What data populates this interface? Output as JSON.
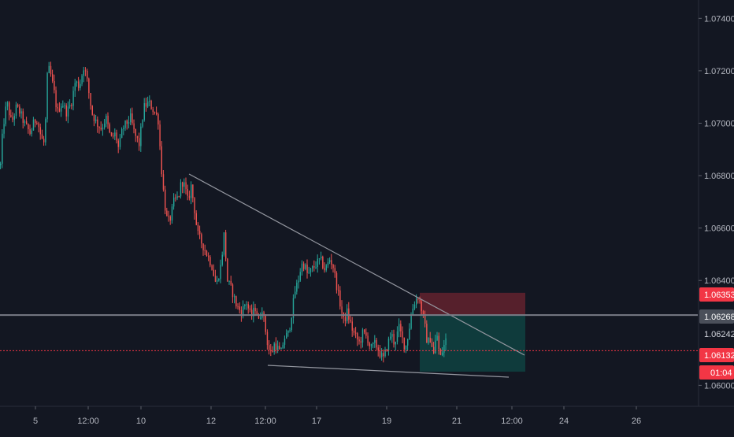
{
  "chart_data": {
    "type": "candlestick",
    "title": "",
    "xlabel": "",
    "ylabel": "",
    "ylim": [
      1.0592,
      1.0747
    ],
    "grid": false,
    "y_ticks": [
      "1.07400",
      "1.07200",
      "1.07000",
      "1.06800",
      "1.06600",
      "1.06400",
      "1.06000"
    ],
    "x_ticks": [
      "5",
      "12:00",
      "10",
      "12",
      "12:00",
      "17",
      "19",
      "21",
      "12:00",
      "24",
      "26"
    ],
    "price_labels": [
      {
        "value": "1.06353",
        "color": "#f23645"
      },
      {
        "value": "1.06268",
        "color": "#4a4f5a"
      },
      {
        "value": "1.06242",
        "color": "#131722"
      },
      {
        "value": "1.06132",
        "color": "#f23645"
      },
      {
        "value": "01:04",
        "color": "#f23645"
      }
    ],
    "levels": {
      "current_price": 1.06132,
      "stop_loss": 1.06353,
      "entry": 1.06268,
      "take_profit_extent": 1.06052
    },
    "waypoints": [
      [
        0,
        1.0684
      ],
      [
        3,
        1.0698
      ],
      [
        8,
        1.0708
      ],
      [
        14,
        1.07
      ],
      [
        20,
        1.0706
      ],
      [
        25,
        1.0704
      ],
      [
        30,
        1.07
      ],
      [
        34,
        1.0698
      ],
      [
        38,
        1.0696
      ],
      [
        42,
        1.07
      ],
      [
        46,
        1.0702
      ],
      [
        52,
        1.0694
      ],
      [
        56,
        1.0692
      ],
      [
        60,
        1.0722
      ],
      [
        64,
        1.0718
      ],
      [
        68,
        1.0712
      ],
      [
        72,
        1.0704
      ],
      [
        78,
        1.0708
      ],
      [
        84,
        1.0704
      ],
      [
        90,
        1.0708
      ],
      [
        95,
        1.0716
      ],
      [
        100,
        1.0714
      ],
      [
        106,
        1.0722
      ],
      [
        110,
        1.0716
      ],
      [
        116,
        1.0704
      ],
      [
        122,
        1.07
      ],
      [
        128,
        1.0698
      ],
      [
        134,
        1.0702
      ],
      [
        140,
        1.0694
      ],
      [
        146,
        1.0696
      ],
      [
        150,
        1.069
      ],
      [
        155,
        1.0698
      ],
      [
        160,
        1.07
      ],
      [
        165,
        1.0702
      ],
      [
        170,
        1.0696
      ],
      [
        176,
        1.0692
      ],
      [
        182,
        1.0706
      ],
      [
        188,
        1.0708
      ],
      [
        196,
        1.0704
      ],
      [
        200,
        1.0702
      ],
      [
        204,
        1.0684
      ],
      [
        208,
        1.067
      ],
      [
        212,
        1.0662
      ],
      [
        216,
        1.0664
      ],
      [
        220,
        1.067
      ],
      [
        226,
        1.0672
      ],
      [
        230,
        1.0678
      ],
      [
        234,
        1.0676
      ],
      [
        238,
        1.067
      ],
      [
        242,
        1.0676
      ],
      [
        246,
        1.0668
      ],
      [
        250,
        1.0658
      ],
      [
        256,
        1.0654
      ],
      [
        262,
        1.065
      ],
      [
        268,
        1.0646
      ],
      [
        274,
        1.0638
      ],
      [
        280,
        1.0646
      ],
      [
        284,
        1.0658
      ],
      [
        288,
        1.064
      ],
      [
        294,
        1.0636
      ],
      [
        300,
        1.063
      ],
      [
        306,
        1.0628
      ],
      [
        312,
        1.0632
      ],
      [
        318,
        1.0626
      ],
      [
        324,
        1.063
      ],
      [
        328,
        1.0624
      ],
      [
        332,
        1.063
      ],
      [
        336,
        1.0622
      ],
      [
        340,
        1.0614
      ],
      [
        344,
        1.0612
      ],
      [
        348,
        1.0616
      ],
      [
        352,
        1.0614
      ],
      [
        356,
        1.0612
      ],
      [
        360,
        1.0618
      ],
      [
        366,
        1.062
      ],
      [
        370,
        1.0628
      ],
      [
        374,
        1.0636
      ],
      [
        378,
        1.064
      ],
      [
        382,
        1.0646
      ],
      [
        386,
        1.0646
      ],
      [
        390,
        1.0642
      ],
      [
        395,
        1.0644
      ],
      [
        400,
        1.0646
      ],
      [
        406,
        1.0648
      ],
      [
        412,
        1.0644
      ],
      [
        418,
        1.0648
      ],
      [
        422,
        1.0646
      ],
      [
        428,
        1.0636
      ],
      [
        432,
        1.063
      ],
      [
        436,
        1.0624
      ],
      [
        440,
        1.0628
      ],
      [
        444,
        1.0624
      ],
      [
        448,
        1.062
      ],
      [
        452,
        1.0618
      ],
      [
        456,
        1.0616
      ],
      [
        460,
        1.062
      ],
      [
        466,
        1.0618
      ],
      [
        470,
        1.0614
      ],
      [
        476,
        1.0616
      ],
      [
        482,
        1.0612
      ],
      [
        486,
        1.061
      ],
      [
        490,
        1.0614
      ],
      [
        496,
        1.062
      ],
      [
        500,
        1.0616
      ],
      [
        506,
        1.0622
      ],
      [
        510,
        1.0618
      ],
      [
        514,
        1.0614
      ],
      [
        518,
        1.062
      ],
      [
        522,
        1.0628
      ],
      [
        526,
        1.0632
      ],
      [
        530,
        1.0634
      ],
      [
        534,
        1.063
      ],
      [
        538,
        1.0624
      ],
      [
        542,
        1.0616
      ],
      [
        546,
        1.0618
      ],
      [
        550,
        1.0612
      ],
      [
        554,
        1.062
      ],
      [
        558,
        1.061
      ],
      [
        562,
        1.0614
      ],
      [
        566,
        1.0618
      ]
    ]
  }
}
